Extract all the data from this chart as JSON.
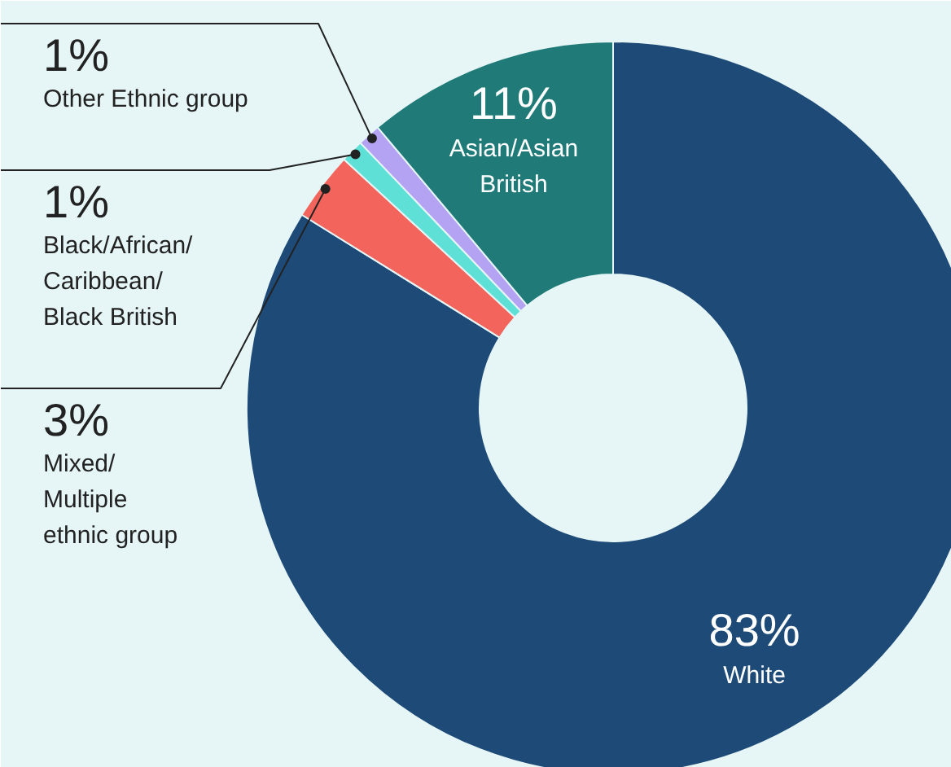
{
  "chart_data": {
    "type": "donut",
    "categories": [
      "White",
      "Mixed/\nMultiple\nethnic group",
      "Black/African/\nCaribbean/\nBlack British",
      "Other Ethnic group",
      "Asian/Asian\nBritish"
    ],
    "values": [
      83,
      3,
      1,
      1,
      11
    ],
    "colors": [
      "#1e4a78",
      "#f2645c",
      "#5fe0d6",
      "#b3a3f2",
      "#1f7a78"
    ],
    "value_labels": [
      "83%",
      "3%",
      "1%",
      "1%",
      "11%"
    ]
  }
}
